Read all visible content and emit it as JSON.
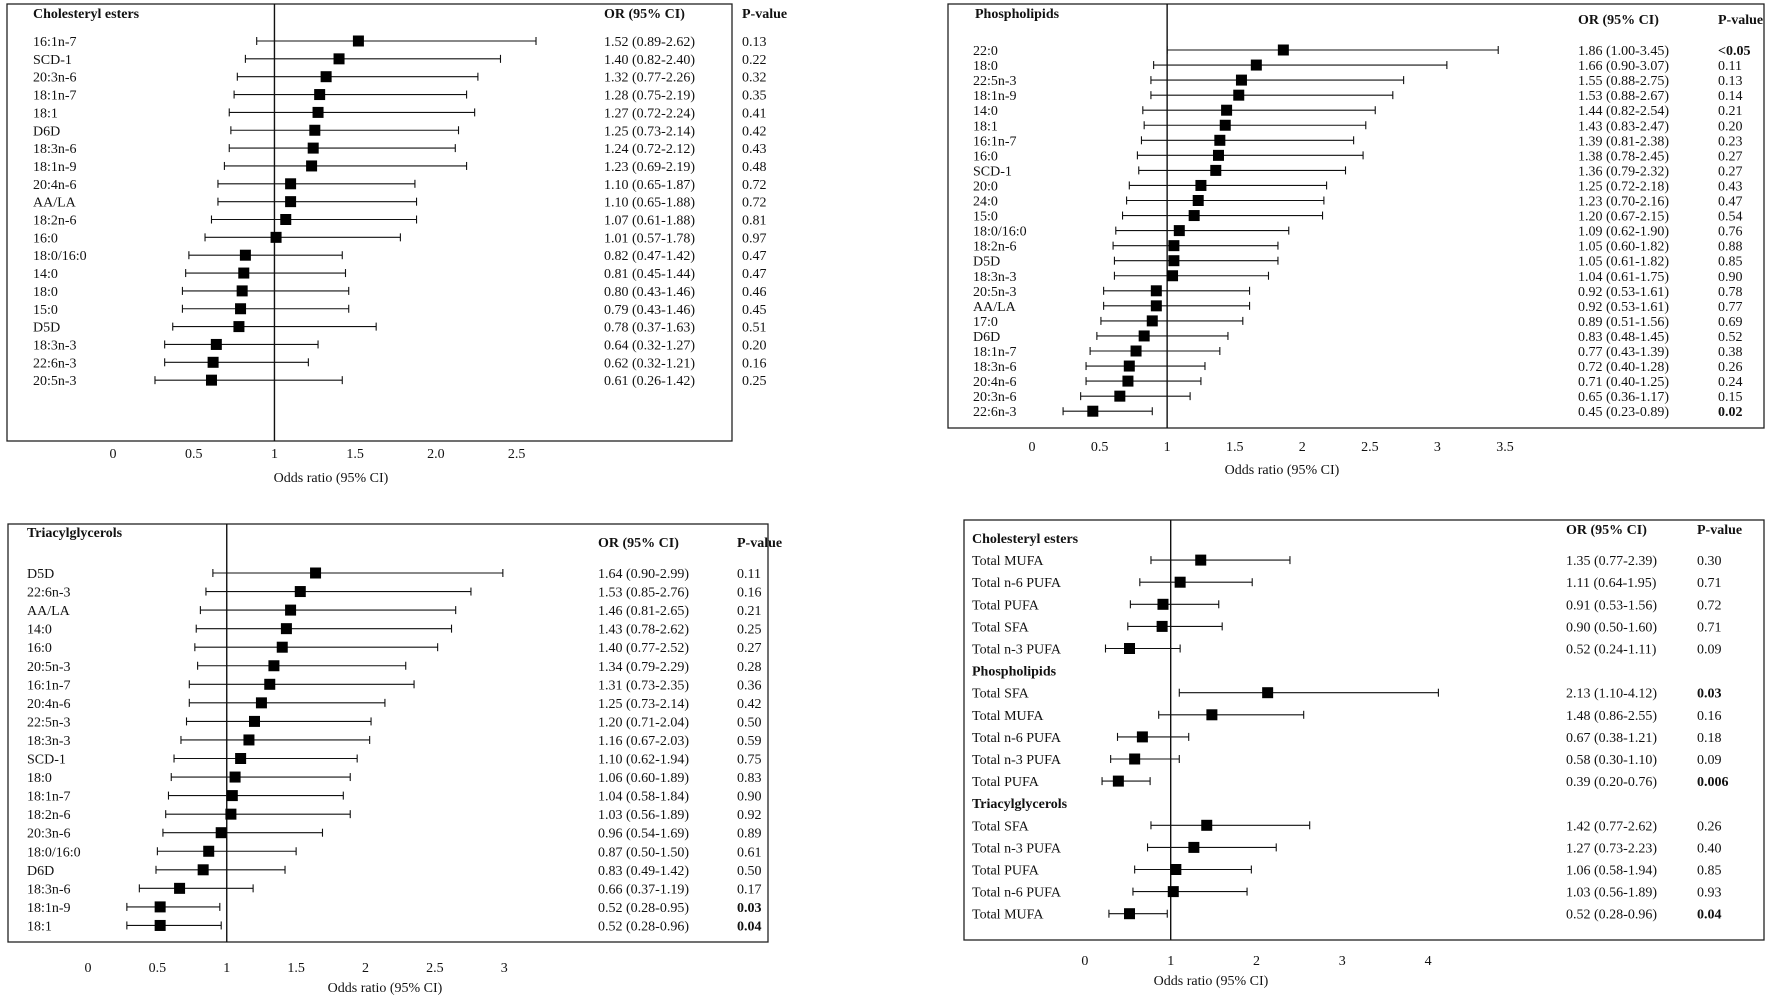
{
  "x_axis_label": "Odds ratio (95% CI)",
  "col_or": "OR (95% CI)",
  "col_p": "P-value",
  "chart_data": [
    {
      "id": "ce",
      "type": "forest",
      "title": "Cholesteryl esters",
      "ticks": [
        0,
        0.5,
        1,
        1.5,
        2,
        2.5
      ],
      "tick_labels": [
        "0",
        "0.5",
        "1",
        "1.5",
        "2.0",
        "2.5"
      ],
      "xlim": [
        0,
        2.75
      ],
      "ref_line": 1,
      "rows": [
        {
          "label": "16:1n-7",
          "or": 1.52,
          "lo": 0.89,
          "hi": 2.62,
          "ci_text": "1.52 (0.89-2.62)",
          "p": "0.13",
          "p_bold": false
        },
        {
          "label": "SCD-1",
          "or": 1.4,
          "lo": 0.82,
          "hi": 2.4,
          "ci_text": "1.40 (0.82-2.40)",
          "p": "0.22",
          "p_bold": false
        },
        {
          "label": "20:3n-6",
          "or": 1.32,
          "lo": 0.77,
          "hi": 2.26,
          "ci_text": "1.32 (0.77-2.26)",
          "p": "0.32",
          "p_bold": false
        },
        {
          "label": "18:1n-7",
          "or": 1.28,
          "lo": 0.75,
          "hi": 2.19,
          "ci_text": "1.28 (0.75-2.19)",
          "p": "0.35",
          "p_bold": false
        },
        {
          "label": "18:1",
          "or": 1.27,
          "lo": 0.72,
          "hi": 2.24,
          "ci_text": "1.27 (0.72-2.24)",
          "p": "0.41",
          "p_bold": false
        },
        {
          "label": "D6D",
          "or": 1.25,
          "lo": 0.73,
          "hi": 2.14,
          "ci_text": "1.25 (0.73-2.14)",
          "p": "0.42",
          "p_bold": false
        },
        {
          "label": "18:3n-6",
          "or": 1.24,
          "lo": 0.72,
          "hi": 2.12,
          "ci_text": "1.24 (0.72-2.12)",
          "p": "0.43",
          "p_bold": false
        },
        {
          "label": "18:1n-9",
          "or": 1.23,
          "lo": 0.69,
          "hi": 2.19,
          "ci_text": "1.23 (0.69-2.19)",
          "p": "0.48",
          "p_bold": false
        },
        {
          "label": "20:4n-6",
          "or": 1.1,
          "lo": 0.65,
          "hi": 1.87,
          "ci_text": "1.10 (0.65-1.87)",
          "p": "0.72",
          "p_bold": false
        },
        {
          "label": "AA/LA",
          "or": 1.1,
          "lo": 0.65,
          "hi": 1.88,
          "ci_text": "1.10 (0.65-1.88)",
          "p": "0.72",
          "p_bold": false
        },
        {
          "label": "18:2n-6",
          "or": 1.07,
          "lo": 0.61,
          "hi": 1.88,
          "ci_text": "1.07 (0.61-1.88)",
          "p": "0.81",
          "p_bold": false
        },
        {
          "label": "16:0",
          "or": 1.01,
          "lo": 0.57,
          "hi": 1.78,
          "ci_text": "1.01 (0.57-1.78)",
          "p": "0.97",
          "p_bold": false
        },
        {
          "label": "18:0/16:0",
          "or": 0.82,
          "lo": 0.47,
          "hi": 1.42,
          "ci_text": "0.82 (0.47-1.42)",
          "p": "0.47",
          "p_bold": false
        },
        {
          "label": "14:0",
          "or": 0.81,
          "lo": 0.45,
          "hi": 1.44,
          "ci_text": "0.81 (0.45-1.44)",
          "p": "0.47",
          "p_bold": false
        },
        {
          "label": "18:0",
          "or": 0.8,
          "lo": 0.43,
          "hi": 1.46,
          "ci_text": "0.80 (0.43-1.46)",
          "p": "0.46",
          "p_bold": false
        },
        {
          "label": "15:0",
          "or": 0.79,
          "lo": 0.43,
          "hi": 1.46,
          "ci_text": "0.79 (0.43-1.46)",
          "p": "0.45",
          "p_bold": false
        },
        {
          "label": "D5D",
          "or": 0.78,
          "lo": 0.37,
          "hi": 1.63,
          "ci_text": "0.78 (0.37-1.63)",
          "p": "0.51",
          "p_bold": false
        },
        {
          "label": "18:3n-3",
          "or": 0.64,
          "lo": 0.32,
          "hi": 1.27,
          "ci_text": "0.64 (0.32-1.27)",
          "p": "0.20",
          "p_bold": false
        },
        {
          "label": "22:6n-3",
          "or": 0.62,
          "lo": 0.32,
          "hi": 1.21,
          "ci_text": "0.62 (0.32-1.21)",
          "p": "0.16",
          "p_bold": false
        },
        {
          "label": "20:5n-3",
          "or": 0.61,
          "lo": 0.26,
          "hi": 1.42,
          "ci_text": "0.61 (0.26-1.42)",
          "p": "0.25",
          "p_bold": false
        }
      ]
    },
    {
      "id": "pl",
      "type": "forest",
      "title": "Phospholipids",
      "ticks": [
        0,
        0.5,
        1,
        1.5,
        2,
        2.5,
        3,
        3.5
      ],
      "tick_labels": [
        "0",
        "0.5",
        "1",
        "1.5",
        "2",
        "2.5",
        "3",
        "3.5"
      ],
      "xlim": [
        0,
        3.7
      ],
      "ref_line": 1,
      "rows": [
        {
          "label": "22:0",
          "or": 1.86,
          "lo": 1.0,
          "hi": 3.45,
          "ci_text": "1.86 (1.00-3.45)",
          "p": "<0.05",
          "p_bold": true
        },
        {
          "label": "18:0",
          "or": 1.66,
          "lo": 0.9,
          "hi": 3.07,
          "ci_text": "1.66 (0.90-3.07)",
          "p": "0.11",
          "p_bold": false
        },
        {
          "label": "22:5n-3",
          "or": 1.55,
          "lo": 0.88,
          "hi": 2.75,
          "ci_text": "1.55 (0.88-2.75)",
          "p": "0.13",
          "p_bold": false
        },
        {
          "label": "18:1n-9",
          "or": 1.53,
          "lo": 0.88,
          "hi": 2.67,
          "ci_text": "1.53 (0.88-2.67)",
          "p": "0.14",
          "p_bold": false
        },
        {
          "label": "14:0",
          "or": 1.44,
          "lo": 0.82,
          "hi": 2.54,
          "ci_text": "1.44 (0.82-2.54)",
          "p": "0.21",
          "p_bold": false
        },
        {
          "label": "18:1",
          "or": 1.43,
          "lo": 0.83,
          "hi": 2.47,
          "ci_text": "1.43 (0.83-2.47)",
          "p": "0.20",
          "p_bold": false
        },
        {
          "label": "16:1n-7",
          "or": 1.39,
          "lo": 0.81,
          "hi": 2.38,
          "ci_text": "1.39 (0.81-2.38)",
          "p": "0.23",
          "p_bold": false
        },
        {
          "label": "16:0",
          "or": 1.38,
          "lo": 0.78,
          "hi": 2.45,
          "ci_text": "1.38 (0.78-2.45)",
          "p": "0.27",
          "p_bold": false
        },
        {
          "label": "SCD-1",
          "or": 1.36,
          "lo": 0.79,
          "hi": 2.32,
          "ci_text": "1.36 (0.79-2.32)",
          "p": "0.27",
          "p_bold": false
        },
        {
          "label": "20:0",
          "or": 1.25,
          "lo": 0.72,
          "hi": 2.18,
          "ci_text": "1.25 (0.72-2.18)",
          "p": "0.43",
          "p_bold": false
        },
        {
          "label": "24:0",
          "or": 1.23,
          "lo": 0.7,
          "hi": 2.16,
          "ci_text": "1.23 (0.70-2.16)",
          "p": "0.47",
          "p_bold": false
        },
        {
          "label": "15:0",
          "or": 1.2,
          "lo": 0.67,
          "hi": 2.15,
          "ci_text": "1.20 (0.67-2.15)",
          "p": "0.54",
          "p_bold": false
        },
        {
          "label": "18:0/16:0",
          "or": 1.09,
          "lo": 0.62,
          "hi": 1.9,
          "ci_text": "1.09 (0.62-1.90)",
          "p": "0.76",
          "p_bold": false
        },
        {
          "label": "18:2n-6",
          "or": 1.05,
          "lo": 0.6,
          "hi": 1.82,
          "ci_text": "1.05 (0.60-1.82)",
          "p": "0.88",
          "p_bold": false
        },
        {
          "label": "D5D",
          "or": 1.05,
          "lo": 0.61,
          "hi": 1.82,
          "ci_text": "1.05 (0.61-1.82)",
          "p": "0.85",
          "p_bold": false
        },
        {
          "label": "18:3n-3",
          "or": 1.04,
          "lo": 0.61,
          "hi": 1.75,
          "ci_text": "1.04 (0.61-1.75)",
          "p": "0.90",
          "p_bold": false
        },
        {
          "label": "20:5n-3",
          "or": 0.92,
          "lo": 0.53,
          "hi": 1.61,
          "ci_text": "0.92 (0.53-1.61)",
          "p": "0.78",
          "p_bold": false
        },
        {
          "label": "AA/LA",
          "or": 0.92,
          "lo": 0.53,
          "hi": 1.61,
          "ci_text": "0.92 (0.53-1.61)",
          "p": "0.77",
          "p_bold": false
        },
        {
          "label": "17:0",
          "or": 0.89,
          "lo": 0.51,
          "hi": 1.56,
          "ci_text": "0.89 (0.51-1.56)",
          "p": "0.69",
          "p_bold": false
        },
        {
          "label": "D6D",
          "or": 0.83,
          "lo": 0.48,
          "hi": 1.45,
          "ci_text": "0.83 (0.48-1.45)",
          "p": "0.52",
          "p_bold": false
        },
        {
          "label": "18:1n-7",
          "or": 0.77,
          "lo": 0.43,
          "hi": 1.39,
          "ci_text": "0.77 (0.43-1.39)",
          "p": "0.38",
          "p_bold": false
        },
        {
          "label": "18:3n-6",
          "or": 0.72,
          "lo": 0.4,
          "hi": 1.28,
          "ci_text": "0.72 (0.40-1.28)",
          "p": "0.26",
          "p_bold": false
        },
        {
          "label": "20:4n-6",
          "or": 0.71,
          "lo": 0.4,
          "hi": 1.25,
          "ci_text": "0.71 (0.40-1.25)",
          "p": "0.24",
          "p_bold": false
        },
        {
          "label": "20:3n-6",
          "or": 0.65,
          "lo": 0.36,
          "hi": 1.17,
          "ci_text": "0.65 (0.36-1.17)",
          "p": "0.15",
          "p_bold": false
        },
        {
          "label": "22:6n-3",
          "or": 0.45,
          "lo": 0.23,
          "hi": 0.89,
          "ci_text": "0.45 (0.23-0.89)",
          "p": "0.02",
          "p_bold": true
        }
      ]
    },
    {
      "id": "tg",
      "type": "forest",
      "title": "Triacylglycerols",
      "ticks": [
        0,
        0.5,
        1,
        1.5,
        2,
        2.5,
        3
      ],
      "tick_labels": [
        "0",
        "0.5",
        "1",
        "1.5",
        "2",
        "2.5",
        "3"
      ],
      "xlim": [
        0,
        3.2
      ],
      "ref_line": 1,
      "rows": [
        {
          "label": "D5D",
          "or": 1.64,
          "lo": 0.9,
          "hi": 2.99,
          "ci_text": "1.64 (0.90-2.99)",
          "p": "0.11",
          "p_bold": false
        },
        {
          "label": "22:6n-3",
          "or": 1.53,
          "lo": 0.85,
          "hi": 2.76,
          "ci_text": "1.53 (0.85-2.76)",
          "p": "0.16",
          "p_bold": false
        },
        {
          "label": "AA/LA",
          "or": 1.46,
          "lo": 0.81,
          "hi": 2.65,
          "ci_text": "1.46 (0.81-2.65)",
          "p": "0.21",
          "p_bold": false
        },
        {
          "label": "14:0",
          "or": 1.43,
          "lo": 0.78,
          "hi": 2.62,
          "ci_text": "1.43 (0.78-2.62)",
          "p": "0.25",
          "p_bold": false
        },
        {
          "label": "16:0",
          "or": 1.4,
          "lo": 0.77,
          "hi": 2.52,
          "ci_text": "1.40 (0.77-2.52)",
          "p": "0.27",
          "p_bold": false
        },
        {
          "label": "20:5n-3",
          "or": 1.34,
          "lo": 0.79,
          "hi": 2.29,
          "ci_text": "1.34 (0.79-2.29)",
          "p": "0.28",
          "p_bold": false
        },
        {
          "label": "16:1n-7",
          "or": 1.31,
          "lo": 0.73,
          "hi": 2.35,
          "ci_text": "1.31 (0.73-2.35)",
          "p": "0.36",
          "p_bold": false
        },
        {
          "label": "20:4n-6",
          "or": 1.25,
          "lo": 0.73,
          "hi": 2.14,
          "ci_text": "1.25 (0.73-2.14)",
          "p": "0.42",
          "p_bold": false
        },
        {
          "label": "22:5n-3",
          "or": 1.2,
          "lo": 0.71,
          "hi": 2.04,
          "ci_text": "1.20 (0.71-2.04)",
          "p": "0.50",
          "p_bold": false
        },
        {
          "label": "18:3n-3",
          "or": 1.16,
          "lo": 0.67,
          "hi": 2.03,
          "ci_text": "1.16 (0.67-2.03)",
          "p": "0.59",
          "p_bold": false
        },
        {
          "label": "SCD-1",
          "or": 1.1,
          "lo": 0.62,
          "hi": 1.94,
          "ci_text": "1.10 (0.62-1.94)",
          "p": "0.75",
          "p_bold": false
        },
        {
          "label": "18:0",
          "or": 1.06,
          "lo": 0.6,
          "hi": 1.89,
          "ci_text": "1.06 (0.60-1.89)",
          "p": "0.83",
          "p_bold": false
        },
        {
          "label": "18:1n-7",
          "or": 1.04,
          "lo": 0.58,
          "hi": 1.84,
          "ci_text": "1.04 (0.58-1.84)",
          "p": "0.90",
          "p_bold": false
        },
        {
          "label": "18:2n-6",
          "or": 1.03,
          "lo": 0.56,
          "hi": 1.89,
          "ci_text": "1.03 (0.56-1.89)",
          "p": "0.92",
          "p_bold": false
        },
        {
          "label": "20:3n-6",
          "or": 0.96,
          "lo": 0.54,
          "hi": 1.69,
          "ci_text": "0.96 (0.54-1.69)",
          "p": "0.89",
          "p_bold": false
        },
        {
          "label": "18:0/16:0",
          "or": 0.87,
          "lo": 0.5,
          "hi": 1.5,
          "ci_text": "0.87 (0.50-1.50)",
          "p": "0.61",
          "p_bold": false
        },
        {
          "label": "D6D",
          "or": 0.83,
          "lo": 0.49,
          "hi": 1.42,
          "ci_text": "0.83 (0.49-1.42)",
          "p": "0.50",
          "p_bold": false
        },
        {
          "label": "18:3n-6",
          "or": 0.66,
          "lo": 0.37,
          "hi": 1.19,
          "ci_text": "0.66 (0.37-1.19)",
          "p": "0.17",
          "p_bold": false
        },
        {
          "label": "18:1n-9",
          "or": 0.52,
          "lo": 0.28,
          "hi": 0.95,
          "ci_text": "0.52 (0.28-0.95)",
          "p": "0.03",
          "p_bold": true
        },
        {
          "label": "18:1",
          "or": 0.52,
          "lo": 0.28,
          "hi": 0.96,
          "ci_text": "0.52 (0.28-0.96)",
          "p": "0.04",
          "p_bold": true
        }
      ]
    },
    {
      "id": "tot",
      "type": "forest",
      "title": "",
      "ticks": [
        0,
        1,
        2,
        3,
        4
      ],
      "tick_labels": [
        "0",
        "1",
        "2",
        "3",
        "4"
      ],
      "xlim": [
        -0.5,
        4.5
      ],
      "ref_line": 1,
      "rows": [
        {
          "header": "Cholesteryl esters"
        },
        {
          "label": "Total MUFA",
          "or": 1.35,
          "lo": 0.77,
          "hi": 2.39,
          "ci_text": "1.35 (0.77-2.39)",
          "p": "0.30",
          "p_bold": false
        },
        {
          "label": "Total n-6 PUFA",
          "or": 1.11,
          "lo": 0.64,
          "hi": 1.95,
          "ci_text": "1.11 (0.64-1.95)",
          "p": "0.71",
          "p_bold": false
        },
        {
          "label": "Total PUFA",
          "or": 0.91,
          "lo": 0.53,
          "hi": 1.56,
          "ci_text": "0.91 (0.53-1.56)",
          "p": "0.72",
          "p_bold": false
        },
        {
          "label": "Total SFA",
          "or": 0.9,
          "lo": 0.5,
          "hi": 1.6,
          "ci_text": "0.90 (0.50-1.60)",
          "p": "0.71",
          "p_bold": false
        },
        {
          "label": "Total n-3 PUFA",
          "or": 0.52,
          "lo": 0.24,
          "hi": 1.11,
          "ci_text": "0.52 (0.24-1.11)",
          "p": "0.09",
          "p_bold": false
        },
        {
          "header": "Phospholipids"
        },
        {
          "label": "Total SFA",
          "or": 2.13,
          "lo": 1.1,
          "hi": 4.12,
          "ci_text": "2.13 (1.10-4.12)",
          "p": "0.03",
          "p_bold": true
        },
        {
          "label": "Total MUFA",
          "or": 1.48,
          "lo": 0.86,
          "hi": 2.55,
          "ci_text": "1.48 (0.86-2.55)",
          "p": "0.16",
          "p_bold": false
        },
        {
          "label": "Total n-6 PUFA",
          "or": 0.67,
          "lo": 0.38,
          "hi": 1.21,
          "ci_text": "0.67 (0.38-1.21)",
          "p": "0.18",
          "p_bold": false
        },
        {
          "label": "Total n-3 PUFA",
          "or": 0.58,
          "lo": 0.3,
          "hi": 1.1,
          "ci_text": "0.58 (0.30-1.10)",
          "p": "0.09",
          "p_bold": false
        },
        {
          "label": "Total PUFA",
          "or": 0.39,
          "lo": 0.2,
          "hi": 0.76,
          "ci_text": "0.39 (0.20-0.76)",
          "p": "0.006",
          "p_bold": true
        },
        {
          "header": "Triacylglycerols"
        },
        {
          "label": "Total SFA",
          "or": 1.42,
          "lo": 0.77,
          "hi": 2.62,
          "ci_text": "1.42 (0.77-2.62)",
          "p": "0.26",
          "p_bold": false
        },
        {
          "label": "Total n-3 PUFA",
          "or": 1.27,
          "lo": 0.73,
          "hi": 2.23,
          "ci_text": "1.27 (0.73-2.23)",
          "p": "0.40",
          "p_bold": false
        },
        {
          "label": "Total PUFA",
          "or": 1.06,
          "lo": 0.58,
          "hi": 1.94,
          "ci_text": "1.06 (0.58-1.94)",
          "p": "0.85",
          "p_bold": false
        },
        {
          "label": "Total n-6 PUFA",
          "or": 1.03,
          "lo": 0.56,
          "hi": 1.89,
          "ci_text": "1.03 (0.56-1.89)",
          "p": "0.93",
          "p_bold": false
        },
        {
          "label": "Total MUFA",
          "or": 0.52,
          "lo": 0.28,
          "hi": 0.96,
          "ci_text": "0.52 (0.28-0.96)",
          "p": "0.04",
          "p_bold": true
        }
      ]
    }
  ]
}
